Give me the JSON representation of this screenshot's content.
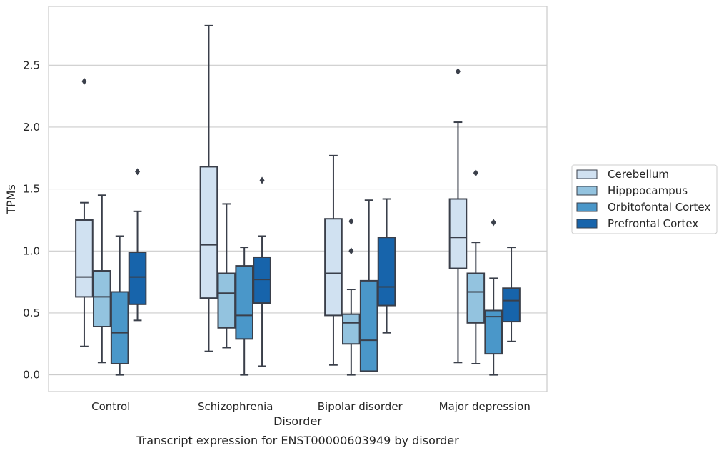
{
  "chart_data": {
    "type": "box",
    "title": "",
    "caption": "Transcript expression for ENST00000603949 by disorder",
    "xlabel": "Disorder",
    "ylabel": "TPMs",
    "ylim": [
      -0.135,
      2.975
    ],
    "yticks": [
      "0.0",
      "0.5",
      "1.0",
      "1.5",
      "2.0",
      "2.5"
    ],
    "grid": true,
    "legend_position": "right",
    "categories": [
      "Control",
      "Schizophrenia",
      "Bipolar disorder",
      "Major depression"
    ],
    "series": [
      {
        "name": "Cerebellum",
        "color": "#d0e1f1",
        "boxes": [
          {
            "whisker_low": 0.23,
            "q1": 0.63,
            "median": 0.79,
            "q3": 1.25,
            "whisker_high": 1.39,
            "outliers": [
              2.37
            ]
          },
          {
            "whisker_low": 0.19,
            "q1": 0.62,
            "median": 1.05,
            "q3": 1.68,
            "whisker_high": 2.82,
            "outliers": []
          },
          {
            "whisker_low": 0.08,
            "q1": 0.48,
            "median": 0.82,
            "q3": 1.26,
            "whisker_high": 1.77,
            "outliers": []
          },
          {
            "whisker_low": 0.1,
            "q1": 0.86,
            "median": 1.11,
            "q3": 1.42,
            "whisker_high": 2.04,
            "outliers": [
              2.45
            ]
          }
        ]
      },
      {
        "name": "Hipppocampus",
        "color": "#93c3df",
        "boxes": [
          {
            "whisker_low": 0.1,
            "q1": 0.39,
            "median": 0.63,
            "q3": 0.84,
            "whisker_high": 1.45,
            "outliers": []
          },
          {
            "whisker_low": 0.22,
            "q1": 0.38,
            "median": 0.66,
            "q3": 0.82,
            "whisker_high": 1.38,
            "outliers": []
          },
          {
            "whisker_low": 0.0,
            "q1": 0.25,
            "median": 0.42,
            "q3": 0.49,
            "whisker_high": 0.69,
            "outliers": [
              1.0,
              1.24
            ]
          },
          {
            "whisker_low": 0.09,
            "q1": 0.42,
            "median": 0.67,
            "q3": 0.82,
            "whisker_high": 1.07,
            "outliers": [
              1.63
            ]
          }
        ]
      },
      {
        "name": "Orbitofontal Cortex",
        "color": "#4a97c9",
        "boxes": [
          {
            "whisker_low": 0.0,
            "q1": 0.09,
            "median": 0.34,
            "q3": 0.67,
            "whisker_high": 1.12,
            "outliers": []
          },
          {
            "whisker_low": 0.0,
            "q1": 0.29,
            "median": 0.48,
            "q3": 0.88,
            "whisker_high": 1.03,
            "outliers": []
          },
          {
            "whisker_low": 0.03,
            "q1": 0.03,
            "median": 0.28,
            "q3": 0.76,
            "whisker_high": 1.41,
            "outliers": []
          },
          {
            "whisker_low": 0.0,
            "q1": 0.17,
            "median": 0.47,
            "q3": 0.52,
            "whisker_high": 0.78,
            "outliers": [
              1.23
            ]
          }
        ]
      },
      {
        "name": "Prefrontal Cortex",
        "color": "#1764ab",
        "boxes": [
          {
            "whisker_low": 0.44,
            "q1": 0.57,
            "median": 0.79,
            "q3": 0.99,
            "whisker_high": 1.32,
            "outliers": [
              1.64
            ]
          },
          {
            "whisker_low": 0.07,
            "q1": 0.58,
            "median": 0.77,
            "q3": 0.95,
            "whisker_high": 1.12,
            "outliers": [
              1.57
            ]
          },
          {
            "whisker_low": 0.34,
            "q1": 0.56,
            "median": 0.71,
            "q3": 1.11,
            "whisker_high": 1.42,
            "outliers": []
          },
          {
            "whisker_low": 0.27,
            "q1": 0.43,
            "median": 0.6,
            "q3": 0.7,
            "whisker_high": 1.03,
            "outliers": []
          }
        ]
      }
    ]
  }
}
